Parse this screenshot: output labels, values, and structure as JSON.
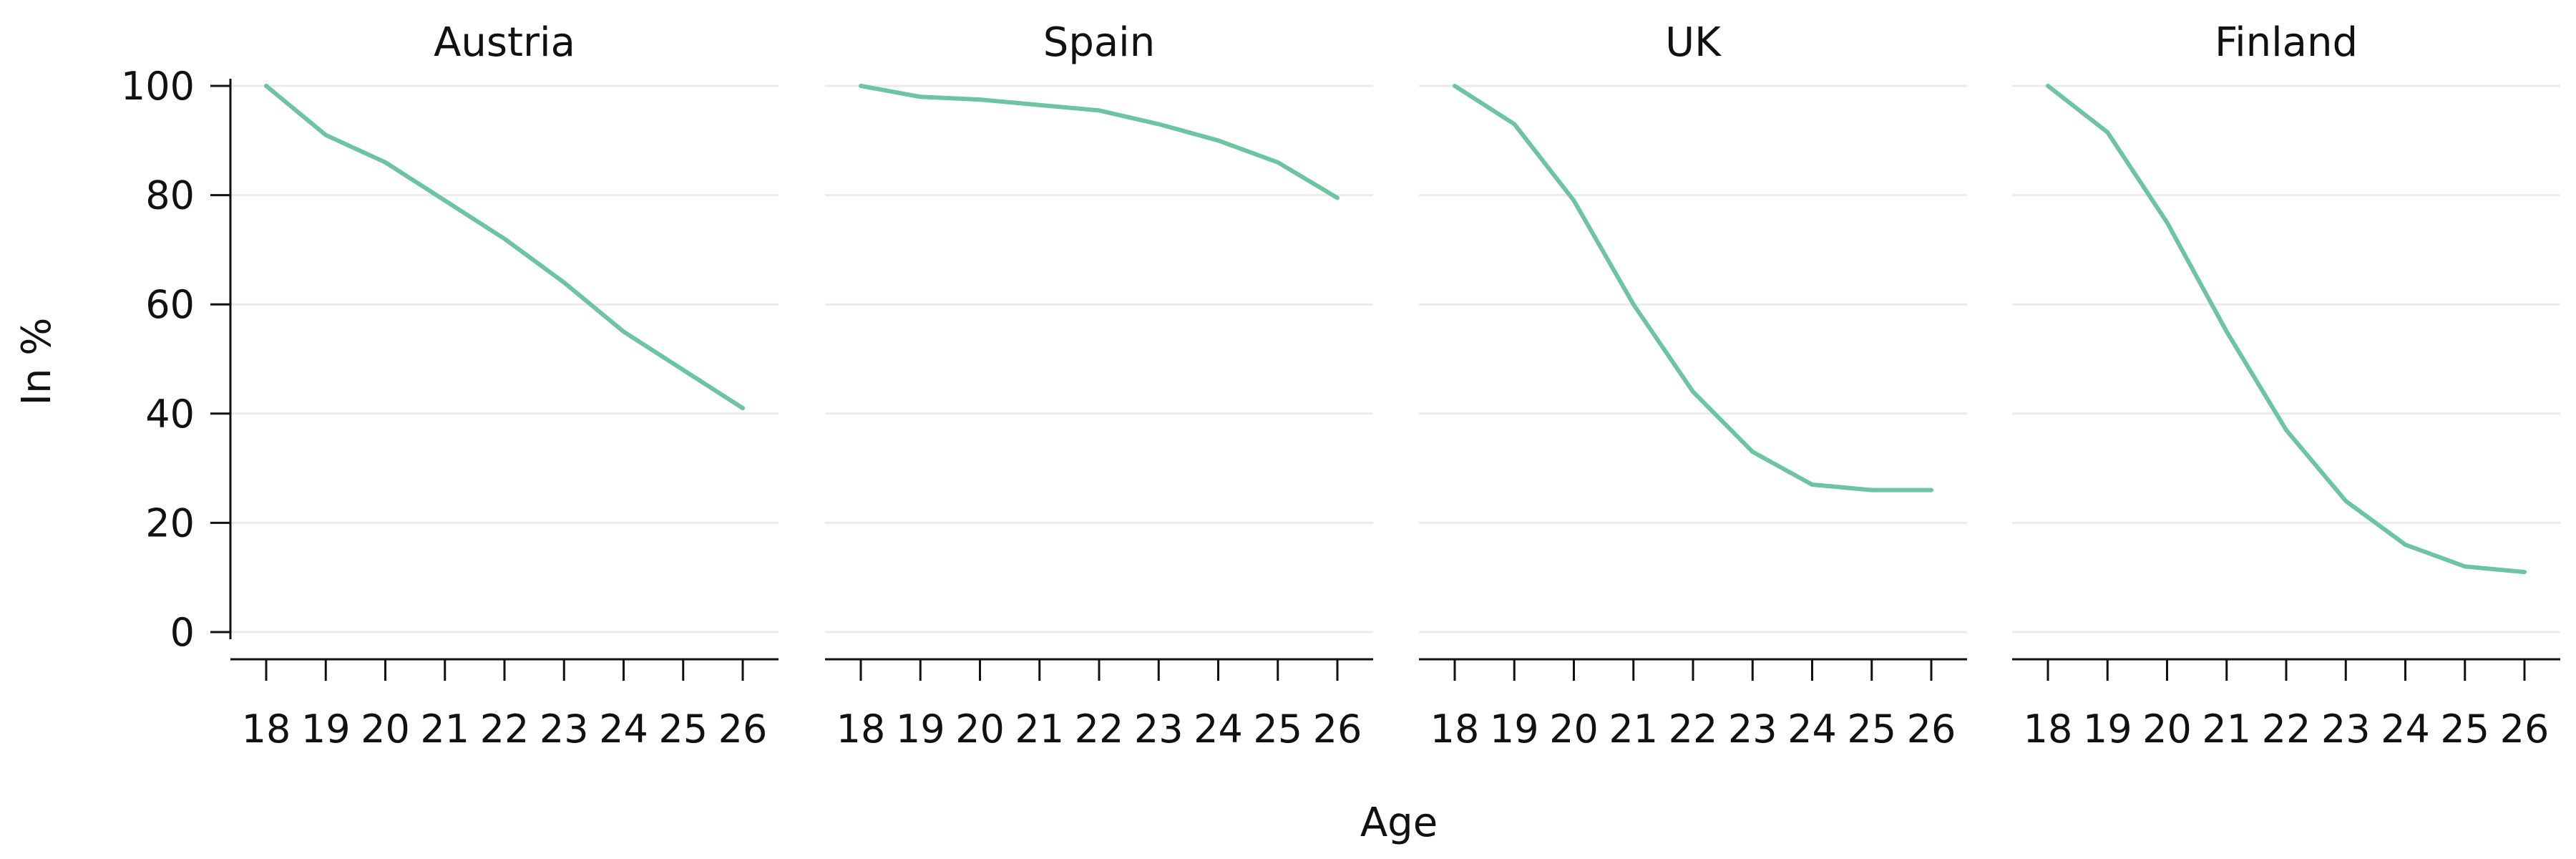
{
  "chart_data": {
    "type": "line",
    "layout": "small-multiples",
    "ylabel": "In %",
    "xlabel": "Age",
    "ylim": [
      0,
      100
    ],
    "yticks": [
      0,
      20,
      40,
      60,
      80,
      100
    ],
    "x": [
      18,
      19,
      20,
      21,
      22,
      23,
      24,
      25,
      26
    ],
    "grid": "horizontal",
    "line_color": "#6cc5a0",
    "panels": [
      {
        "title": "Austria",
        "values": [
          100,
          91,
          86,
          79,
          72,
          64,
          55,
          48,
          41
        ]
      },
      {
        "title": "Spain",
        "values": [
          100,
          98,
          97.5,
          96.5,
          95.5,
          93,
          90,
          86,
          79.5
        ]
      },
      {
        "title": "UK",
        "values": [
          100,
          93,
          79,
          60,
          44,
          33,
          27,
          26,
          26
        ]
      },
      {
        "title": "Finland",
        "values": [
          100,
          91.5,
          75,
          55,
          37,
          24,
          16,
          12,
          11
        ]
      }
    ]
  }
}
